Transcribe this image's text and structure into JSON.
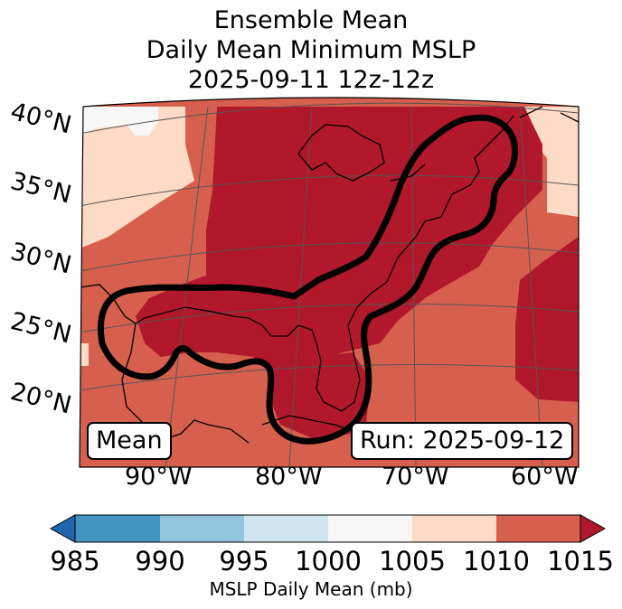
{
  "title": {
    "line1": "Ensemble Mean",
    "line2": "Daily Mean Minimum MSLP",
    "line3": "2025-09-11 12z-12z"
  },
  "lat_labels": [
    "40°N",
    "35°N",
    "30°N",
    "25°N",
    "20°N"
  ],
  "lon_labels": [
    "90°W",
    "80°W",
    "70°W",
    "60°W"
  ],
  "boxes": {
    "left": "Mean",
    "right": "Run: 2025-09-12"
  },
  "colorbar": {
    "label": "MSLP Daily Mean (mb)",
    "ticks": [
      "985",
      "990",
      "995",
      "1000",
      "1005",
      "1010",
      "1015"
    ],
    "colors": [
      "#2166ac",
      "#4393c3",
      "#92c5de",
      "#d1e5f0",
      "#f7f7f7",
      "#fddbc7",
      "#d6604d",
      "#b2182b"
    ]
  },
  "fill_colors": {
    "light": "#f7f7f7",
    "peach": "#fddbc7",
    "salmon": "#d6604d",
    "dark": "#b2182b",
    "contour": "#000000",
    "grid": "#555555"
  }
}
